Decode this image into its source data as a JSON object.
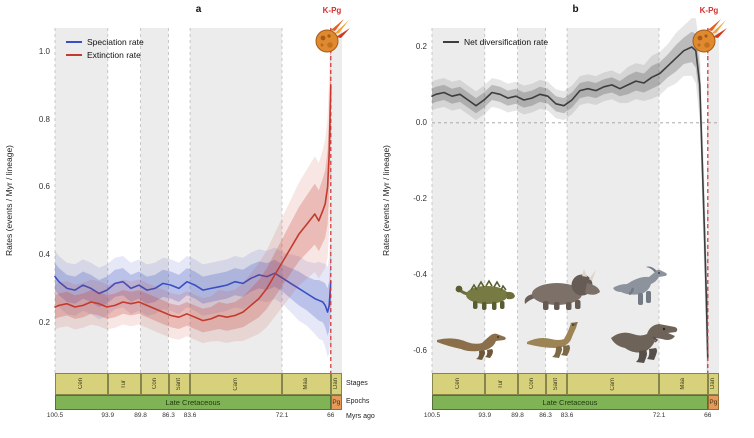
{
  "figure": {
    "kpg_label": "K-Pg",
    "images": [
      "ankylosaurus",
      "ceratopsian",
      "hadrosaur",
      "dromaeosaurid",
      "ornithomimid",
      "tyrannosaurus",
      "asteroid"
    ]
  },
  "colors": {
    "band_gray": "#ececec",
    "grid_line": "#bdbdbd",
    "zero_line": "#9e9e9e",
    "kpg_line": "#d62f2f",
    "speciation_blue": "#3a4ec4",
    "extinction_red": "#c23b2e",
    "net_rate_black": "#3d3d3d",
    "stage_fill": "#d6d17a",
    "stage_border": "#85854d",
    "epoch_fill": "#7fb356",
    "epoch_border": "#55703a",
    "pg_fill": "#e39a5b",
    "pg_border": "#9a6a33"
  },
  "timescale": {
    "axis_start": 100.5,
    "axis_end": 64.6,
    "boundaries": [
      100.5,
      93.9,
      89.8,
      86.3,
      83.6,
      72.1,
      66
    ],
    "tick_labels": [
      "100.5",
      "93.9",
      "89.8",
      "86.3",
      "83.6",
      "72.1",
      "66"
    ],
    "stages": [
      {
        "label": "Cen",
        "from": 100.5,
        "to": 93.9
      },
      {
        "label": "Tur",
        "from": 93.9,
        "to": 89.8
      },
      {
        "label": "Con",
        "from": 89.8,
        "to": 86.3
      },
      {
        "label": "Sant",
        "from": 86.3,
        "to": 83.6
      },
      {
        "label": "Cam",
        "from": 83.6,
        "to": 72.1
      },
      {
        "label": "Maa",
        "from": 72.1,
        "to": 66
      },
      {
        "label": "Dan",
        "from": 66,
        "to": 64.6
      }
    ],
    "epochs": [
      {
        "label": "Late Cretaceous",
        "from": 100.5,
        "to": 66
      },
      {
        "label": "Pg",
        "from": 66,
        "to": 64.6
      }
    ],
    "row_labels": {
      "stages": "Stages",
      "epochs": "Epochs",
      "myrs": "Myrs ago"
    }
  },
  "chart_data": [
    {
      "type": "line",
      "panel": "a",
      "title": "a",
      "xlabel": "Myrs ago",
      "ylabel": "Rates (events / Myr / lineage)",
      "x_range": [
        100.5,
        66
      ],
      "ylim": [
        0.05,
        1.07
      ],
      "yticks": [
        0.2,
        0.4,
        0.6,
        0.8,
        1.0
      ],
      "zero_line": false,
      "kpg_line_x": 66,
      "legend_position": "top-left",
      "x": [
        100.5,
        100,
        99,
        98,
        97,
        96,
        95,
        94,
        93,
        92,
        91,
        90,
        89,
        88,
        87,
        86,
        85,
        84,
        83,
        82,
        81,
        80,
        79,
        78,
        77,
        76,
        75,
        74,
        73,
        72,
        71,
        70,
        69,
        68,
        67.5,
        67,
        66.7,
        66.4,
        66.2,
        66
      ],
      "series": [
        {
          "name": "Speciation rate",
          "color": "#3a4ec4",
          "values": [
            0.335,
            0.32,
            0.3,
            0.295,
            0.31,
            0.3,
            0.285,
            0.295,
            0.315,
            0.32,
            0.3,
            0.31,
            0.295,
            0.3,
            0.315,
            0.31,
            0.3,
            0.32,
            0.31,
            0.295,
            0.3,
            0.305,
            0.31,
            0.32,
            0.315,
            0.33,
            0.34,
            0.335,
            0.345,
            0.33,
            0.315,
            0.3,
            0.285,
            0.27,
            0.265,
            0.26,
            0.25,
            0.23,
            0.25,
            0.32
          ],
          "ci": [
            0.04,
            0.04,
            0.04,
            0.04,
            0.04,
            0.04,
            0.04,
            0.04,
            0.04,
            0.04,
            0.04,
            0.04,
            0.04,
            0.04,
            0.04,
            0.04,
            0.04,
            0.04,
            0.04,
            0.04,
            0.04,
            0.04,
            0.04,
            0.04,
            0.04,
            0.04,
            0.04,
            0.04,
            0.04,
            0.04,
            0.045,
            0.05,
            0.05,
            0.055,
            0.06,
            0.06,
            0.065,
            0.07,
            0.075,
            0.08
          ]
        },
        {
          "name": "Extinction rate",
          "color": "#c23b2e",
          "values": [
            0.245,
            0.25,
            0.255,
            0.245,
            0.25,
            0.26,
            0.255,
            0.245,
            0.25,
            0.26,
            0.255,
            0.26,
            0.25,
            0.24,
            0.23,
            0.22,
            0.215,
            0.225,
            0.215,
            0.205,
            0.21,
            0.22,
            0.215,
            0.22,
            0.23,
            0.25,
            0.27,
            0.3,
            0.34,
            0.38,
            0.42,
            0.46,
            0.49,
            0.52,
            0.5,
            0.53,
            0.55,
            0.6,
            0.7,
            0.9
          ],
          "ci": [
            0.035,
            0.035,
            0.035,
            0.035,
            0.035,
            0.035,
            0.035,
            0.035,
            0.035,
            0.035,
            0.035,
            0.035,
            0.035,
            0.035,
            0.035,
            0.035,
            0.035,
            0.035,
            0.035,
            0.035,
            0.035,
            0.04,
            0.04,
            0.04,
            0.045,
            0.05,
            0.055,
            0.06,
            0.065,
            0.07,
            0.075,
            0.08,
            0.085,
            0.09,
            0.09,
            0.095,
            0.1,
            0.11,
            0.12,
            0.13
          ]
        }
      ]
    },
    {
      "type": "line",
      "panel": "b",
      "title": "b",
      "xlabel": "Myrs ago",
      "ylabel": "Rates (events / Myr / lineage)",
      "x_range": [
        100.5,
        66
      ],
      "ylim": [
        -0.66,
        0.25
      ],
      "yticks": [
        0.2,
        0.0,
        -0.2,
        -0.4,
        -0.6
      ],
      "zero_line": true,
      "kpg_line_x": 66,
      "legend_position": "top-left",
      "x": [
        100.5,
        100,
        99,
        98,
        97,
        96,
        95,
        94,
        93,
        92,
        91,
        90,
        89,
        88,
        87,
        86,
        85,
        84,
        83,
        82,
        81,
        80,
        79,
        78,
        77,
        76,
        75,
        74,
        73,
        72,
        71,
        70,
        69,
        68,
        67.5,
        67,
        66.7,
        66.4,
        66.2,
        66
      ],
      "series": [
        {
          "name": "Net diversification rate",
          "color": "#3d3d3d",
          "values": [
            0.07,
            0.075,
            0.08,
            0.07,
            0.075,
            0.06,
            0.045,
            0.06,
            0.08,
            0.075,
            0.065,
            0.07,
            0.06,
            0.065,
            0.075,
            0.07,
            0.05,
            0.045,
            0.06,
            0.085,
            0.09,
            0.085,
            0.095,
            0.1,
            0.09,
            0.1,
            0.11,
            0.105,
            0.12,
            0.13,
            0.15,
            0.17,
            0.19,
            0.2,
            0.19,
            0.1,
            -0.1,
            -0.3,
            -0.45,
            -0.62
          ],
          "ci": [
            0.02,
            0.02,
            0.02,
            0.02,
            0.02,
            0.02,
            0.02,
            0.02,
            0.02,
            0.02,
            0.02,
            0.02,
            0.02,
            0.02,
            0.02,
            0.02,
            0.02,
            0.02,
            0.02,
            0.02,
            0.02,
            0.02,
            0.02,
            0.02,
            0.02,
            0.025,
            0.025,
            0.025,
            0.03,
            0.03,
            0.03,
            0.035,
            0.035,
            0.04,
            0.045,
            0.05,
            0.06,
            0.07,
            0.08,
            0.09
          ]
        }
      ]
    }
  ]
}
